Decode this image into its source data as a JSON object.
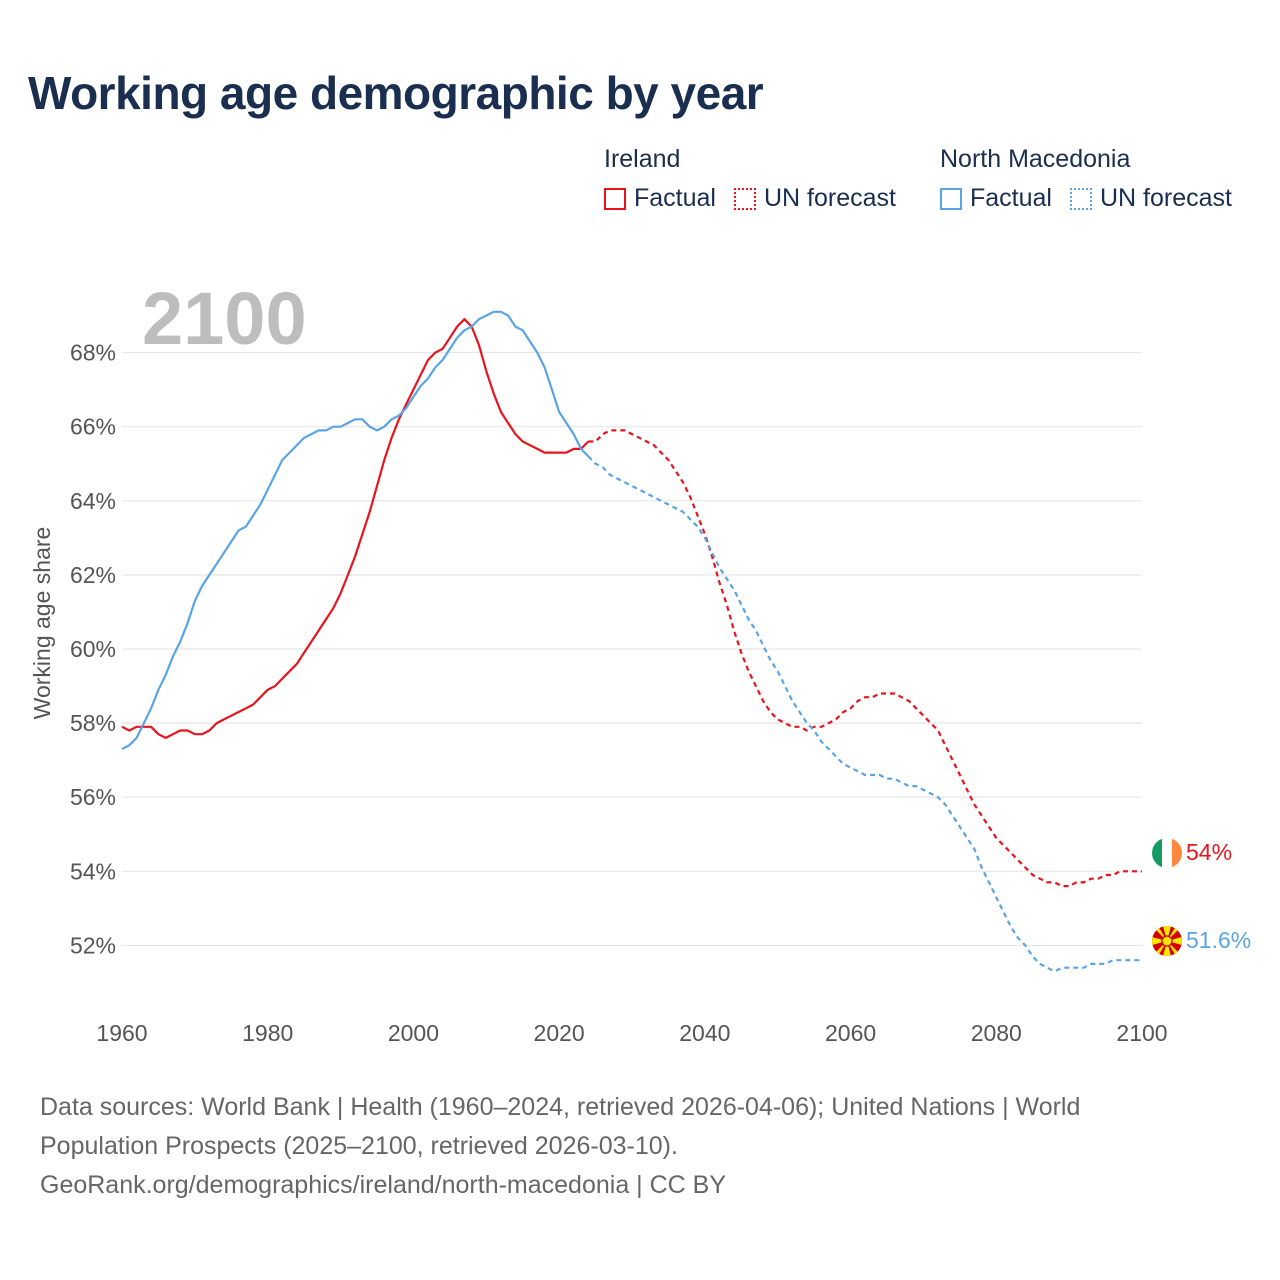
{
  "title": "Working age demographic by year",
  "legend": {
    "groups": [
      {
        "name": "Ireland",
        "color": "#e8141c",
        "items": [
          {
            "label": "Factual",
            "style": "solid"
          },
          {
            "label": "UN forecast",
            "style": "dotted"
          }
        ]
      },
      {
        "name": "North Macedonia",
        "color": "#5aa4e6",
        "items": [
          {
            "label": "Factual",
            "style": "solid"
          },
          {
            "label": "UN forecast",
            "style": "dotted"
          }
        ]
      }
    ]
  },
  "year_overlay": "2100",
  "footer": {
    "line1": "Data sources: World Bank | Health (1960–2024, retrieved 2026-04-06); United Nations | World",
    "line2": "Population Prospects (2025–2100, retrieved 2026-03-10).",
    "line3": "GeoRank.org/demographics/ireland/north-macedonia | CC BY"
  },
  "chart_data": {
    "type": "line",
    "title": "Working age demographic by year",
    "xlabel": "",
    "ylabel": "Working age share",
    "xlim": [
      1960,
      2100
    ],
    "ylim": [
      50.5,
      69.5
    ],
    "xticks": [
      1960,
      1980,
      2000,
      2020,
      2040,
      2060,
      2080,
      2100
    ],
    "xtick_labels": [
      "1960",
      "1980",
      "2000",
      "2020",
      "2040",
      "2060",
      "2080",
      "2100"
    ],
    "yticks": [
      52,
      54,
      56,
      58,
      60,
      62,
      64,
      66,
      68
    ],
    "ytick_labels": [
      "52%",
      "54%",
      "56%",
      "58%",
      "60%",
      "62%",
      "64%",
      "66%",
      "68%"
    ],
    "grid": true,
    "series": [
      {
        "name": "Ireland",
        "color": "#e8141c",
        "forecast_start": 2024,
        "end_label": "54%",
        "points": [
          [
            1960,
            57.9
          ],
          [
            1961,
            57.8
          ],
          [
            1962,
            57.9
          ],
          [
            1963,
            57.9
          ],
          [
            1964,
            57.9
          ],
          [
            1965,
            57.7
          ],
          [
            1966,
            57.6
          ],
          [
            1967,
            57.7
          ],
          [
            1968,
            57.8
          ],
          [
            1969,
            57.8
          ],
          [
            1970,
            57.7
          ],
          [
            1971,
            57.7
          ],
          [
            1972,
            57.8
          ],
          [
            1973,
            58.0
          ],
          [
            1974,
            58.1
          ],
          [
            1975,
            58.2
          ],
          [
            1976,
            58.3
          ],
          [
            1977,
            58.4
          ],
          [
            1978,
            58.5
          ],
          [
            1979,
            58.7
          ],
          [
            1980,
            58.9
          ],
          [
            1981,
            59.0
          ],
          [
            1982,
            59.2
          ],
          [
            1983,
            59.4
          ],
          [
            1984,
            59.6
          ],
          [
            1985,
            59.9
          ],
          [
            1986,
            60.2
          ],
          [
            1987,
            60.5
          ],
          [
            1988,
            60.8
          ],
          [
            1989,
            61.1
          ],
          [
            1990,
            61.5
          ],
          [
            1991,
            62.0
          ],
          [
            1992,
            62.5
          ],
          [
            1993,
            63.1
          ],
          [
            1994,
            63.7
          ],
          [
            1995,
            64.4
          ],
          [
            1996,
            65.1
          ],
          [
            1997,
            65.7
          ],
          [
            1998,
            66.2
          ],
          [
            1999,
            66.6
          ],
          [
            2000,
            67.0
          ],
          [
            2001,
            67.4
          ],
          [
            2002,
            67.8
          ],
          [
            2003,
            68.0
          ],
          [
            2004,
            68.1
          ],
          [
            2005,
            68.4
          ],
          [
            2006,
            68.7
          ],
          [
            2007,
            68.9
          ],
          [
            2008,
            68.7
          ],
          [
            2009,
            68.2
          ],
          [
            2010,
            67.5
          ],
          [
            2011,
            66.9
          ],
          [
            2012,
            66.4
          ],
          [
            2013,
            66.1
          ],
          [
            2014,
            65.8
          ],
          [
            2015,
            65.6
          ],
          [
            2016,
            65.5
          ],
          [
            2017,
            65.4
          ],
          [
            2018,
            65.3
          ],
          [
            2019,
            65.3
          ],
          [
            2020,
            65.3
          ],
          [
            2021,
            65.3
          ],
          [
            2022,
            65.4
          ],
          [
            2023,
            65.4
          ],
          [
            2024,
            65.6
          ],
          [
            2025,
            65.6
          ],
          [
            2026,
            65.8
          ],
          [
            2027,
            65.9
          ],
          [
            2028,
            65.9
          ],
          [
            2029,
            65.9
          ],
          [
            2030,
            65.8
          ],
          [
            2031,
            65.7
          ],
          [
            2032,
            65.6
          ],
          [
            2033,
            65.5
          ],
          [
            2034,
            65.3
          ],
          [
            2035,
            65.1
          ],
          [
            2036,
            64.8
          ],
          [
            2037,
            64.5
          ],
          [
            2038,
            64.1
          ],
          [
            2039,
            63.6
          ],
          [
            2040,
            63.1
          ],
          [
            2041,
            62.5
          ],
          [
            2042,
            61.8
          ],
          [
            2043,
            61.2
          ],
          [
            2044,
            60.5
          ],
          [
            2045,
            59.9
          ],
          [
            2046,
            59.4
          ],
          [
            2047,
            59.0
          ],
          [
            2048,
            58.6
          ],
          [
            2049,
            58.3
          ],
          [
            2050,
            58.1
          ],
          [
            2051,
            58.0
          ],
          [
            2052,
            57.9
          ],
          [
            2053,
            57.9
          ],
          [
            2054,
            57.8
          ],
          [
            2055,
            57.9
          ],
          [
            2056,
            57.9
          ],
          [
            2057,
            58.0
          ],
          [
            2058,
            58.1
          ],
          [
            2059,
            58.3
          ],
          [
            2060,
            58.4
          ],
          [
            2061,
            58.6
          ],
          [
            2062,
            58.7
          ],
          [
            2063,
            58.7
          ],
          [
            2064,
            58.8
          ],
          [
            2065,
            58.8
          ],
          [
            2066,
            58.8
          ],
          [
            2067,
            58.7
          ],
          [
            2068,
            58.6
          ],
          [
            2069,
            58.4
          ],
          [
            2070,
            58.2
          ],
          [
            2071,
            58.0
          ],
          [
            2072,
            57.8
          ],
          [
            2073,
            57.4
          ],
          [
            2074,
            57.0
          ],
          [
            2075,
            56.6
          ],
          [
            2076,
            56.2
          ],
          [
            2077,
            55.8
          ],
          [
            2078,
            55.5
          ],
          [
            2079,
            55.2
          ],
          [
            2080,
            54.9
          ],
          [
            2081,
            54.7
          ],
          [
            2082,
            54.5
          ],
          [
            2083,
            54.3
          ],
          [
            2084,
            54.1
          ],
          [
            2085,
            53.9
          ],
          [
            2086,
            53.8
          ],
          [
            2087,
            53.7
          ],
          [
            2088,
            53.7
          ],
          [
            2089,
            53.6
          ],
          [
            2090,
            53.6
          ],
          [
            2091,
            53.7
          ],
          [
            2092,
            53.7
          ],
          [
            2093,
            53.8
          ],
          [
            2094,
            53.8
          ],
          [
            2095,
            53.9
          ],
          [
            2096,
            53.9
          ],
          [
            2097,
            54.0
          ],
          [
            2098,
            54.0
          ],
          [
            2099,
            54.0
          ],
          [
            2100,
            54.0
          ]
        ]
      },
      {
        "name": "North Macedonia",
        "color": "#5aa4e6",
        "forecast_start": 2024,
        "end_label": "51.6%",
        "points": [
          [
            1960,
            57.3
          ],
          [
            1961,
            57.4
          ],
          [
            1962,
            57.6
          ],
          [
            1963,
            58.0
          ],
          [
            1964,
            58.4
          ],
          [
            1965,
            58.9
          ],
          [
            1966,
            59.3
          ],
          [
            1967,
            59.8
          ],
          [
            1968,
            60.2
          ],
          [
            1969,
            60.7
          ],
          [
            1970,
            61.3
          ],
          [
            1971,
            61.7
          ],
          [
            1972,
            62.0
          ],
          [
            1973,
            62.3
          ],
          [
            1974,
            62.6
          ],
          [
            1975,
            62.9
          ],
          [
            1976,
            63.2
          ],
          [
            1977,
            63.3
          ],
          [
            1978,
            63.6
          ],
          [
            1979,
            63.9
          ],
          [
            1980,
            64.3
          ],
          [
            1981,
            64.7
          ],
          [
            1982,
            65.1
          ],
          [
            1983,
            65.3
          ],
          [
            1984,
            65.5
          ],
          [
            1985,
            65.7
          ],
          [
            1986,
            65.8
          ],
          [
            1987,
            65.9
          ],
          [
            1988,
            65.9
          ],
          [
            1989,
            66.0
          ],
          [
            1990,
            66.0
          ],
          [
            1991,
            66.1
          ],
          [
            1992,
            66.2
          ],
          [
            1993,
            66.2
          ],
          [
            1994,
            66.0
          ],
          [
            1995,
            65.9
          ],
          [
            1996,
            66.0
          ],
          [
            1997,
            66.2
          ],
          [
            1998,
            66.3
          ],
          [
            1999,
            66.5
          ],
          [
            2000,
            66.8
          ],
          [
            2001,
            67.1
          ],
          [
            2002,
            67.3
          ],
          [
            2003,
            67.6
          ],
          [
            2004,
            67.8
          ],
          [
            2005,
            68.1
          ],
          [
            2006,
            68.4
          ],
          [
            2007,
            68.6
          ],
          [
            2008,
            68.7
          ],
          [
            2009,
            68.9
          ],
          [
            2010,
            69.0
          ],
          [
            2011,
            69.1
          ],
          [
            2012,
            69.1
          ],
          [
            2013,
            69.0
          ],
          [
            2014,
            68.7
          ],
          [
            2015,
            68.6
          ],
          [
            2016,
            68.3
          ],
          [
            2017,
            68.0
          ],
          [
            2018,
            67.6
          ],
          [
            2019,
            67.0
          ],
          [
            2020,
            66.4
          ],
          [
            2021,
            66.1
          ],
          [
            2022,
            65.8
          ],
          [
            2023,
            65.4
          ],
          [
            2024,
            65.2
          ],
          [
            2025,
            65.0
          ],
          [
            2026,
            64.9
          ],
          [
            2027,
            64.7
          ],
          [
            2028,
            64.6
          ],
          [
            2029,
            64.5
          ],
          [
            2030,
            64.4
          ],
          [
            2031,
            64.3
          ],
          [
            2032,
            64.2
          ],
          [
            2033,
            64.1
          ],
          [
            2034,
            64.0
          ],
          [
            2035,
            63.9
          ],
          [
            2036,
            63.8
          ],
          [
            2037,
            63.7
          ],
          [
            2038,
            63.5
          ],
          [
            2039,
            63.3
          ],
          [
            2040,
            63.0
          ],
          [
            2041,
            62.6
          ],
          [
            2042,
            62.2
          ],
          [
            2043,
            61.9
          ],
          [
            2044,
            61.6
          ],
          [
            2045,
            61.2
          ],
          [
            2046,
            60.8
          ],
          [
            2047,
            60.5
          ],
          [
            2048,
            60.1
          ],
          [
            2049,
            59.7
          ],
          [
            2050,
            59.4
          ],
          [
            2051,
            59.0
          ],
          [
            2052,
            58.6
          ],
          [
            2053,
            58.3
          ],
          [
            2054,
            58.0
          ],
          [
            2055,
            57.8
          ],
          [
            2056,
            57.5
          ],
          [
            2057,
            57.3
          ],
          [
            2058,
            57.1
          ],
          [
            2059,
            56.9
          ],
          [
            2060,
            56.8
          ],
          [
            2061,
            56.7
          ],
          [
            2062,
            56.6
          ],
          [
            2063,
            56.6
          ],
          [
            2064,
            56.6
          ],
          [
            2065,
            56.5
          ],
          [
            2066,
            56.5
          ],
          [
            2067,
            56.4
          ],
          [
            2068,
            56.3
          ],
          [
            2069,
            56.3
          ],
          [
            2070,
            56.2
          ],
          [
            2071,
            56.1
          ],
          [
            2072,
            56.0
          ],
          [
            2073,
            55.8
          ],
          [
            2074,
            55.5
          ],
          [
            2075,
            55.2
          ],
          [
            2076,
            54.9
          ],
          [
            2077,
            54.6
          ],
          [
            2078,
            54.1
          ],
          [
            2079,
            53.7
          ],
          [
            2080,
            53.3
          ],
          [
            2081,
            52.9
          ],
          [
            2082,
            52.5
          ],
          [
            2083,
            52.2
          ],
          [
            2084,
            52.0
          ],
          [
            2085,
            51.7
          ],
          [
            2086,
            51.5
          ],
          [
            2087,
            51.4
          ],
          [
            2088,
            51.3
          ],
          [
            2089,
            51.4
          ],
          [
            2090,
            51.4
          ],
          [
            2091,
            51.4
          ],
          [
            2092,
            51.4
          ],
          [
            2093,
            51.5
          ],
          [
            2094,
            51.5
          ],
          [
            2095,
            51.5
          ],
          [
            2096,
            51.6
          ],
          [
            2097,
            51.6
          ],
          [
            2098,
            51.6
          ],
          [
            2099,
            51.6
          ],
          [
            2100,
            51.6
          ]
        ]
      }
    ]
  }
}
